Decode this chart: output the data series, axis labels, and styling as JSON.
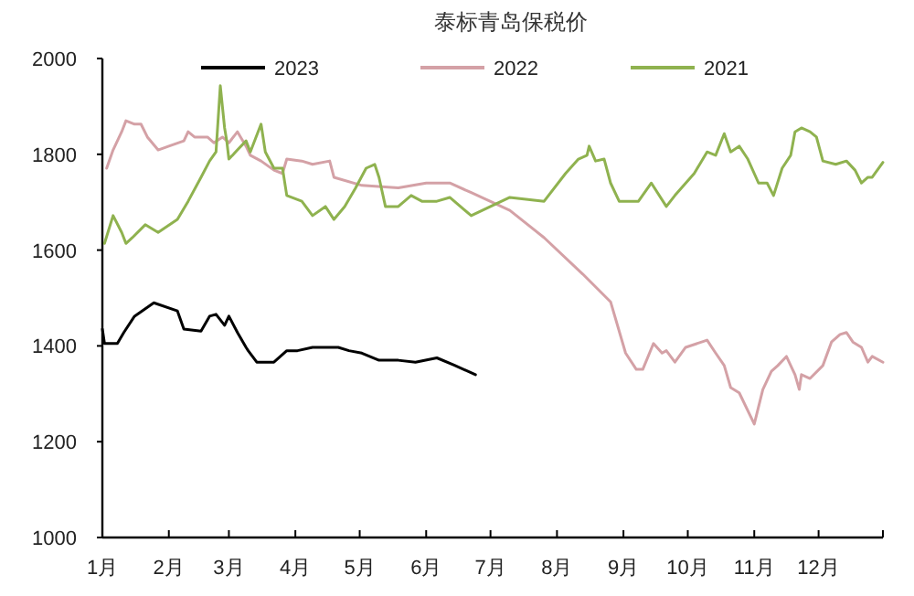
{
  "chart_data": {
    "type": "line",
    "title": "泰标青岛保税价",
    "xlim": [
      "--01-01",
      "--12-31"
    ],
    "xticks": [
      {
        "value": "--01-01",
        "label": "1月"
      },
      {
        "value": "--02-01",
        "label": "2月"
      },
      {
        "value": "--03-01",
        "label": "3月"
      },
      {
        "value": "--04-01",
        "label": "4月"
      },
      {
        "value": "--05-01",
        "label": "5月"
      },
      {
        "value": "--06-01",
        "label": "6月"
      },
      {
        "value": "--07-01",
        "label": "7月"
      },
      {
        "value": "--08-01",
        "label": "8月"
      },
      {
        "value": "--09-01",
        "label": "9月"
      },
      {
        "value": "--10-01",
        "label": "10月"
      },
      {
        "value": "--11-01",
        "label": "11月"
      },
      {
        "value": "--12-01",
        "label": "12月"
      },
      {
        "value": "--12-31",
        "label": null
      }
    ],
    "ylim": [
      1000,
      2000
    ],
    "yticks": [
      1000,
      1200,
      1400,
      1600,
      1800,
      2000
    ],
    "grid": false,
    "legend": "top",
    "marker": "none",
    "line_style": "solid",
    "series": [
      {
        "name": "2023",
        "color": "#000000",
        "x": [
          "--01-01",
          "--01-02",
          "--01-08",
          "--01-11",
          "--01-16",
          "--01-25",
          "--02-05",
          "--02-08",
          "--02-16",
          "--02-20",
          "--02-23",
          "--02-27",
          "--03-01",
          "--03-05",
          "--03-09",
          "--03-10",
          "--03-14",
          "--03-22",
          "--03-28",
          "--04-02",
          "--04-09",
          "--04-21",
          "--04-26",
          "--05-02",
          "--05-10",
          "--05-19",
          "--05-27",
          "--06-06",
          "--06-14",
          "--06-24"
        ],
        "values": [
          1435,
          1405,
          1405,
          1428,
          1462,
          1490,
          1473,
          1435,
          1431,
          1462,
          1466,
          1443,
          1462,
          1428,
          1397,
          1390,
          1366,
          1366,
          1390,
          1390,
          1397,
          1397,
          1390,
          1385,
          1370,
          1370,
          1366,
          1375,
          1360,
          1340
        ]
      },
      {
        "name": "2022",
        "color": "#d4a1a6",
        "x": [
          "--01-03",
          "--01-06",
          "--01-10",
          "--01-12",
          "--01-16",
          "--01-19",
          "--01-22",
          "--01-27",
          "--02-01",
          "--02-08",
          "--02-10",
          "--02-13",
          "--02-19",
          "--02-22",
          "--02-26",
          "--03-01",
          "--03-05",
          "--03-09",
          "--03-11",
          "--03-16",
          "--03-22",
          "--03-26",
          "--03-28",
          "--04-04",
          "--04-09",
          "--04-17",
          "--04-19",
          "--05-02",
          "--05-19",
          "--06-01",
          "--06-12",
          "--06-22",
          "--07-10",
          "--07-26",
          "--08-13",
          "--08-26",
          "--09-02",
          "--09-07",
          "--09-10",
          "--09-15",
          "--09-19",
          "--09-21",
          "--09-25",
          "--09-30",
          "--10-10",
          "--10-14",
          "--10-18",
          "--10-21",
          "--10-25",
          "--11-01",
          "--11-05",
          "--11-09",
          "--11-12",
          "--11-16",
          "--11-20",
          "--11-22",
          "--11-23",
          "--11-27",
          "--12-03",
          "--12-07",
          "--12-11",
          "--12-14",
          "--12-17",
          "--12-21",
          "--12-24",
          "--12-26",
          "--12-31"
        ],
        "values": [
          1771,
          1809,
          1847,
          1870,
          1863,
          1863,
          1836,
          1809,
          1817,
          1828,
          1847,
          1836,
          1836,
          1824,
          1836,
          1824,
          1847,
          1817,
          1798,
          1786,
          1767,
          1760,
          1790,
          1786,
          1779,
          1786,
          1752,
          1735,
          1730,
          1740,
          1740,
          1720,
          1683,
          1626,
          1550,
          1492,
          1385,
          1351,
          1351,
          1405,
          1385,
          1390,
          1366,
          1397,
          1412,
          1385,
          1359,
          1313,
          1302,
          1237,
          1309,
          1347,
          1359,
          1378,
          1340,
          1309,
          1340,
          1332,
          1359,
          1408,
          1424,
          1428,
          1408,
          1397,
          1366,
          1378,
          1366
        ]
      },
      {
        "name": "2021",
        "color": "#8fb24f",
        "x": [
          "--01-02",
          "--01-06",
          "--01-10",
          "--01-12",
          "--01-15",
          "--01-21",
          "--01-27",
          "--02-05",
          "--02-10",
          "--02-16",
          "--02-20",
          "--02-23",
          "--02-25",
          "--02-27",
          "--02-28",
          "--03-01",
          "--03-05",
          "--03-09",
          "--03-11",
          "--03-16",
          "--03-18",
          "--03-22",
          "--03-26",
          "--03-28",
          "--04-04",
          "--04-09",
          "--04-15",
          "--04-19",
          "--04-24",
          "--04-29",
          "--05-04",
          "--05-08",
          "--05-10",
          "--05-13",
          "--05-19",
          "--05-25",
          "--05-30",
          "--06-06",
          "--06-12",
          "--06-22",
          "--07-10",
          "--07-26",
          "--08-05",
          "--08-11",
          "--08-15",
          "--08-16",
          "--08-19",
          "--08-23",
          "--08-26",
          "--08-30",
          "--09-08",
          "--09-14",
          "--09-21",
          "--09-25",
          "--10-04",
          "--10-10",
          "--10-14",
          "--10-18",
          "--10-21",
          "--10-25",
          "--10-29",
          "--11-03",
          "--11-07",
          "--11-10",
          "--11-14",
          "--11-18",
          "--11-20",
          "--11-23",
          "--11-27",
          "--11-30",
          "--12-03",
          "--12-09",
          "--12-14",
          "--12-18",
          "--12-21",
          "--12-24",
          "--12-26",
          "--12-31"
        ],
        "values": [
          1614,
          1672,
          1637,
          1614,
          1626,
          1653,
          1637,
          1664,
          1702,
          1752,
          1786,
          1805,
          1943,
          1855,
          1828,
          1790,
          1809,
          1828,
          1805,
          1863,
          1805,
          1771,
          1771,
          1714,
          1702,
          1672,
          1691,
          1664,
          1691,
          1729,
          1771,
          1779,
          1752,
          1691,
          1691,
          1714,
          1702,
          1702,
          1710,
          1672,
          1710,
          1702,
          1760,
          1790,
          1798,
          1817,
          1786,
          1790,
          1740,
          1702,
          1702,
          1740,
          1691,
          1714,
          1760,
          1805,
          1798,
          1843,
          1805,
          1817,
          1790,
          1740,
          1740,
          1714,
          1771,
          1798,
          1847,
          1855,
          1847,
          1836,
          1786,
          1779,
          1786,
          1767,
          1740,
          1752,
          1752,
          1783
        ]
      }
    ]
  }
}
